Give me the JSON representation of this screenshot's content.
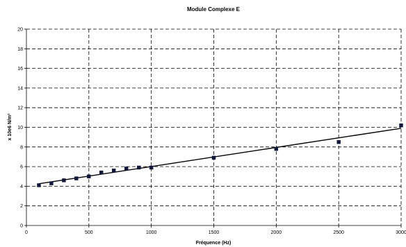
{
  "chart_data": {
    "type": "scatter",
    "title": "Module Complexe E",
    "xlabel": "Fréquence (Hz)",
    "ylabel": "x 10e6 N/m²",
    "xlim": [
      0,
      3000
    ],
    "ylim": [
      0,
      20
    ],
    "x_ticks": [
      0,
      500,
      1000,
      1500,
      2000,
      2500,
      3000
    ],
    "y_ticks": [
      0,
      2,
      4,
      6,
      8,
      10,
      12,
      14,
      16,
      18,
      20
    ],
    "grid": true,
    "legend": "none",
    "series": [
      {
        "x": [
          100,
          200,
          300,
          400,
          500,
          600,
          700,
          800,
          900,
          1000,
          1500,
          2000,
          2500,
          3000
        ],
        "y": [
          4.1,
          4.3,
          4.6,
          4.8,
          5.0,
          5.4,
          5.6,
          5.8,
          5.9,
          5.9,
          6.9,
          7.8,
          8.5,
          10.2
        ],
        "color": "#101840"
      }
    ],
    "trendline": {
      "x": [
        100,
        3000
      ],
      "y": [
        4.25,
        9.9
      ],
      "color": "#000000"
    }
  }
}
